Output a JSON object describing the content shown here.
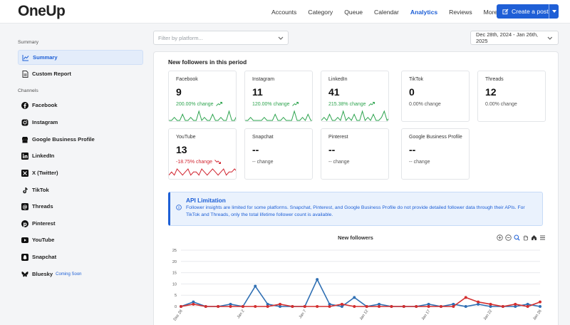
{
  "app": {
    "logo": "OneUp"
  },
  "nav": {
    "items": [
      "Accounts",
      "Category",
      "Queue",
      "Calendar",
      "Analytics",
      "Reviews"
    ],
    "active": "Analytics",
    "more_label": "More",
    "create_label": "Create a post"
  },
  "sidebar": {
    "summary_section": "Summary",
    "summary_items": [
      {
        "label": "Summary",
        "icon": "chart-icon"
      },
      {
        "label": "Custom Report",
        "icon": "document-icon"
      }
    ],
    "channels_section": "Channels",
    "channel_items": [
      {
        "label": "Facebook",
        "icon": "facebook-icon"
      },
      {
        "label": "Instagram",
        "icon": "instagram-icon"
      },
      {
        "label": "Google Business Profile",
        "icon": "google-business-icon"
      },
      {
        "label": "LinkedIn",
        "icon": "linkedin-icon"
      },
      {
        "label": "X (Twitter)",
        "icon": "x-icon"
      },
      {
        "label": "TikTok",
        "icon": "tiktok-icon"
      },
      {
        "label": "Threads",
        "icon": "threads-icon"
      },
      {
        "label": "Pinterest",
        "icon": "pinterest-icon"
      },
      {
        "label": "YouTube",
        "icon": "youtube-icon"
      },
      {
        "label": "Snapchat",
        "icon": "snapchat-icon"
      },
      {
        "label": "Bluesky",
        "icon": "bluesky-icon",
        "badge": "Coming Soon"
      }
    ]
  },
  "filters": {
    "platform_placeholder": "Filter by platform...",
    "date_range": "Dec 28th, 2024 - Jan 26th, 2025"
  },
  "panel": {
    "title": "New followers in this period",
    "cards": [
      {
        "name": "Facebook",
        "value": "9",
        "change": "200.00% change",
        "trend": "up"
      },
      {
        "name": "Instagram",
        "value": "11",
        "change": "120.00% change",
        "trend": "up"
      },
      {
        "name": "LinkedIn",
        "value": "41",
        "change": "215.38% change",
        "trend": "up"
      },
      {
        "name": "TikTok",
        "value": "0",
        "change": "0.00% change",
        "trend": "flat"
      },
      {
        "name": "Threads",
        "value": "12",
        "change": "0.00% change",
        "trend": "flat"
      },
      {
        "name": "YouTube",
        "value": "13",
        "change": "-18.75% change",
        "trend": "down"
      },
      {
        "name": "Snapchat",
        "value": "--",
        "change": "-- change",
        "trend": "none"
      },
      {
        "name": "Pinterest",
        "value": "--",
        "change": "-- change",
        "trend": "none"
      },
      {
        "name": "Google Business Profile",
        "value": "--",
        "change": "-- change",
        "trend": "none"
      }
    ],
    "alert": {
      "title": "API Limitation",
      "body": "Follower insights are limited for some platforms. Snapchat, Pinterest, and Google Business Profile do not provide detailed follower data through their APIs. For TikTok and Threads, only the total lifetime follower count is available."
    }
  },
  "colors": {
    "accent": "#1d5fd6",
    "up": "#2ea44f",
    "down": "#d1242f",
    "series_blue": "#2f6fb3",
    "series_red": "#d32f2f"
  },
  "chart_data": {
    "type": "line",
    "title": "New followers",
    "x_tick_labels": [
      "Dec 28",
      "Jan 2",
      "Jan 7",
      "Jan 12",
      "Jan 17",
      "Jan 22",
      "Jan 26"
    ],
    "x_tick_index": [
      0,
      5,
      10,
      15,
      20,
      25,
      29
    ],
    "y_ticks": [
      0,
      5,
      10,
      15,
      20,
      25
    ],
    "ylim": [
      0,
      25
    ],
    "series": [
      {
        "color": "#2f6fb3",
        "values": [
          0,
          2,
          0,
          0,
          1,
          0,
          9,
          1,
          0,
          0,
          0,
          12,
          1,
          0,
          4,
          0,
          1,
          0,
          0,
          0,
          1,
          0,
          1,
          0,
          1,
          0,
          0,
          0,
          1,
          0
        ]
      },
      {
        "color": "#d32f2f",
        "values": [
          0,
          1,
          0,
          0,
          0,
          0,
          0,
          0,
          1,
          0,
          0,
          0,
          0,
          1,
          0,
          0,
          0,
          0,
          0,
          0,
          0,
          0,
          0,
          4,
          2,
          1,
          0,
          1,
          0,
          2
        ]
      }
    ]
  }
}
